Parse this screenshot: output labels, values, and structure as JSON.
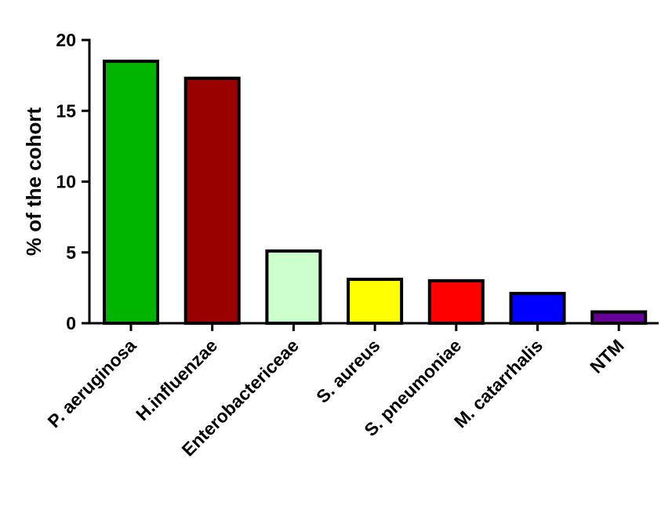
{
  "chart_data": {
    "type": "bar",
    "title": "",
    "xlabel": "",
    "ylabel": "% of the cohort",
    "ylim": [
      0,
      20
    ],
    "yticks": [
      "0",
      "5",
      "10",
      "15",
      "20"
    ],
    "grid": false,
    "categories": [
      "P. aeruginosa",
      "H.influenzae",
      "Enterobactericeae",
      "S. aureus",
      "S. pneumoniae",
      "M. catarrhalis",
      "NTM"
    ],
    "values": [
      18.5,
      17.3,
      5.1,
      3.1,
      3.0,
      2.1,
      0.8
    ],
    "colors": [
      "#00b400",
      "#990000",
      "#ccffcc",
      "#ffff00",
      "#ff0000",
      "#0000ff",
      "#660099"
    ],
    "bar_edge_color": "#000000"
  }
}
